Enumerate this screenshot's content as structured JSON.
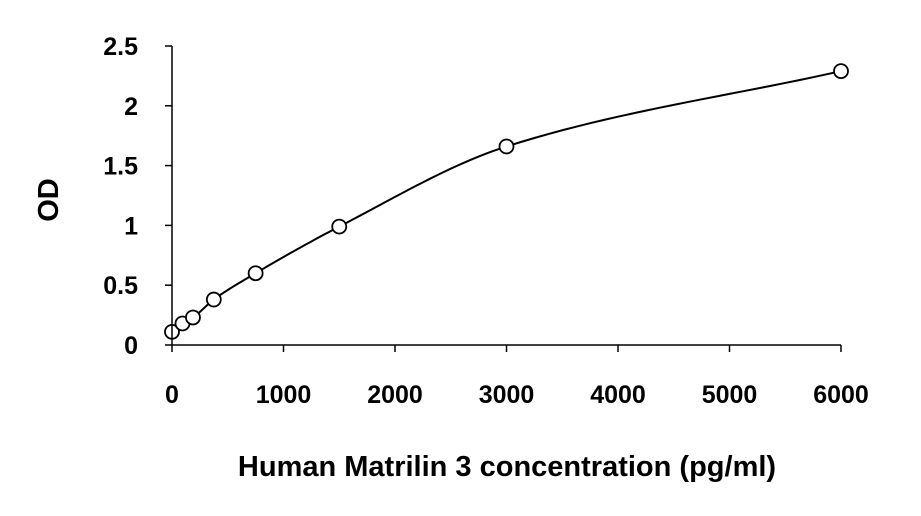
{
  "chart_data": {
    "type": "scatter",
    "title": "",
    "xlabel": "Human Matrilin 3 concentration (pg/ml)",
    "ylabel": "OD",
    "xlim": [
      0,
      6000
    ],
    "ylim": [
      0,
      2.5
    ],
    "x_ticks": [
      "0",
      "1000",
      "2000",
      "3000",
      "4000",
      "5000",
      "6000"
    ],
    "y_ticks": [
      "0",
      "0.5",
      "1",
      "1.5",
      "2",
      "2.5"
    ],
    "grid": false,
    "legend": "none",
    "marker": "open-circle",
    "trendline": "smooth fitted curve",
    "colors": {
      "line": "#000000",
      "marker": "#000000",
      "background": "#ffffff"
    },
    "points": [
      {
        "x": 0,
        "y": 0.11
      },
      {
        "x": 94,
        "y": 0.18
      },
      {
        "x": 188,
        "y": 0.23
      },
      {
        "x": 375,
        "y": 0.38
      },
      {
        "x": 750,
        "y": 0.6
      },
      {
        "x": 1500,
        "y": 0.99
      },
      {
        "x": 3000,
        "y": 1.66
      },
      {
        "x": 6000,
        "y": 2.29
      }
    ]
  }
}
